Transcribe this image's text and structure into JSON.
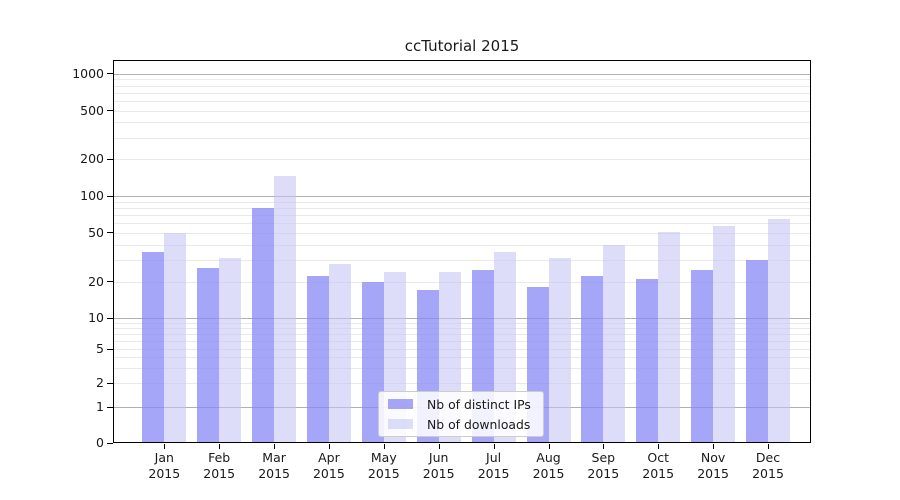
{
  "title": "ccTutorial 2015",
  "chart_data": {
    "type": "bar",
    "title": "ccTutorial 2015",
    "categories": [
      "Jan",
      "Feb",
      "Mar",
      "Apr",
      "May",
      "Jun",
      "Jul",
      "Aug",
      "Sep",
      "Oct",
      "Nov",
      "Dec"
    ],
    "year": "2015",
    "series": [
      {
        "name": "Nb of distinct IPs",
        "values": [
          35,
          26,
          80,
          22,
          20,
          17,
          25,
          18,
          22,
          21,
          25,
          30
        ],
        "color": "rgba(136,136,245,0.75)"
      },
      {
        "name": "Nb of downloads",
        "values": [
          50,
          31,
          145,
          28,
          24,
          24,
          35,
          31,
          40,
          51,
          57,
          65
        ],
        "color": "rgba(196,196,247,0.57)"
      }
    ],
    "y_ticks": [
      0,
      1,
      2,
      5,
      10,
      20,
      50,
      100,
      200,
      500,
      1000
    ],
    "y_scale": "symlog",
    "ylim": [
      0,
      1200
    ],
    "xlabel": "",
    "ylabel": "",
    "grid": true,
    "legend_position": "lower-center",
    "colors": {
      "major_grid": "#b0b0b0",
      "minor_grid": "#e9e9e9",
      "spine": "#000000",
      "text": "#1a1a1a",
      "legend_border": "#cccccc"
    }
  }
}
